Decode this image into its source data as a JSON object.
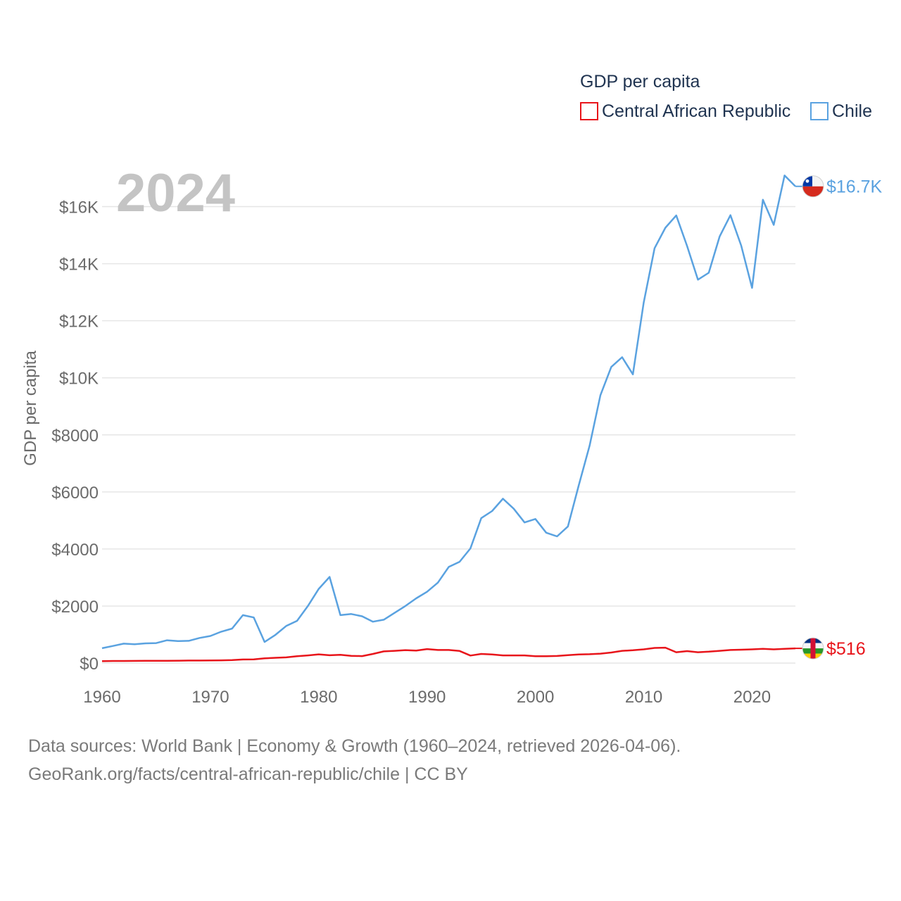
{
  "chart_data": {
    "type": "line",
    "title": "GDP per capita",
    "ylabel": "GDP per capita",
    "xlabel": "",
    "year_label": "2024",
    "xlim": [
      1960,
      2024
    ],
    "ylim": [
      0,
      17500
    ],
    "x_ticks": [
      1960,
      1970,
      1980,
      1990,
      2000,
      2010,
      2020
    ],
    "y_ticks": [
      {
        "value": 0,
        "label": "$0"
      },
      {
        "value": 2000,
        "label": "$2000"
      },
      {
        "value": 4000,
        "label": "$4000"
      },
      {
        "value": 6000,
        "label": "$6000"
      },
      {
        "value": 8000,
        "label": "$8000"
      },
      {
        "value": 10000,
        "label": "$10K"
      },
      {
        "value": 12000,
        "label": "$12K"
      },
      {
        "value": 14000,
        "label": "$14K"
      },
      {
        "value": 16000,
        "label": "$16K"
      }
    ],
    "legend": {
      "title": "GDP per capita",
      "position": "top-right"
    },
    "years": [
      1960,
      1961,
      1962,
      1963,
      1964,
      1965,
      1966,
      1967,
      1968,
      1969,
      1970,
      1971,
      1972,
      1973,
      1974,
      1975,
      1976,
      1977,
      1978,
      1979,
      1980,
      1981,
      1982,
      1983,
      1984,
      1985,
      1986,
      1987,
      1988,
      1989,
      1990,
      1991,
      1992,
      1993,
      1994,
      1995,
      1996,
      1997,
      1998,
      1999,
      2000,
      2001,
      2002,
      2003,
      2004,
      2005,
      2006,
      2007,
      2008,
      2009,
      2010,
      2011,
      2012,
      2013,
      2014,
      2015,
      2016,
      2017,
      2018,
      2019,
      2020,
      2021,
      2022,
      2023,
      2024
    ],
    "series": [
      {
        "name": "Central African Republic",
        "color": "#e8151b",
        "end_label": "$516",
        "flag": "central-african-republic",
        "values": [
          70,
          73,
          74,
          76,
          78,
          80,
          82,
          85,
          88,
          90,
          92,
          96,
          105,
          125,
          130,
          165,
          185,
          200,
          240,
          270,
          305,
          275,
          290,
          255,
          245,
          320,
          410,
          430,
          455,
          440,
          490,
          460,
          460,
          425,
          265,
          320,
          300,
          270,
          270,
          270,
          240,
          240,
          250,
          280,
          300,
          310,
          330,
          370,
          430,
          450,
          480,
          530,
          540,
          380,
          420,
          380,
          400,
          430,
          460,
          470,
          480,
          500,
          480,
          500,
          516
        ]
      },
      {
        "name": "Chile",
        "color": "#5aa2e0",
        "end_label": "$16.7K",
        "flag": "chile",
        "values": [
          520,
          600,
          680,
          660,
          690,
          700,
          800,
          770,
          780,
          880,
          950,
          1100,
          1210,
          1680,
          1600,
          740,
          990,
          1300,
          1480,
          2000,
          2600,
          3020,
          1680,
          1720,
          1640,
          1450,
          1520,
          1760,
          2000,
          2270,
          2500,
          2820,
          3370,
          3550,
          4020,
          5080,
          5330,
          5760,
          5410,
          4930,
          5050,
          4570,
          4440,
          4790,
          6230,
          7620,
          9390,
          10380,
          10720,
          10120,
          12640,
          14540,
          15260,
          15690,
          14620,
          13440,
          13680,
          14950,
          15700,
          14630,
          13150,
          16240,
          15360,
          17090,
          16710
        ]
      }
    ]
  },
  "footer": {
    "line1": "Data sources: World Bank | Economy & Growth (1960–2024, retrieved 2026-04-06).",
    "line2": "GeoRank.org/facts/central-african-republic/chile | CC BY"
  }
}
